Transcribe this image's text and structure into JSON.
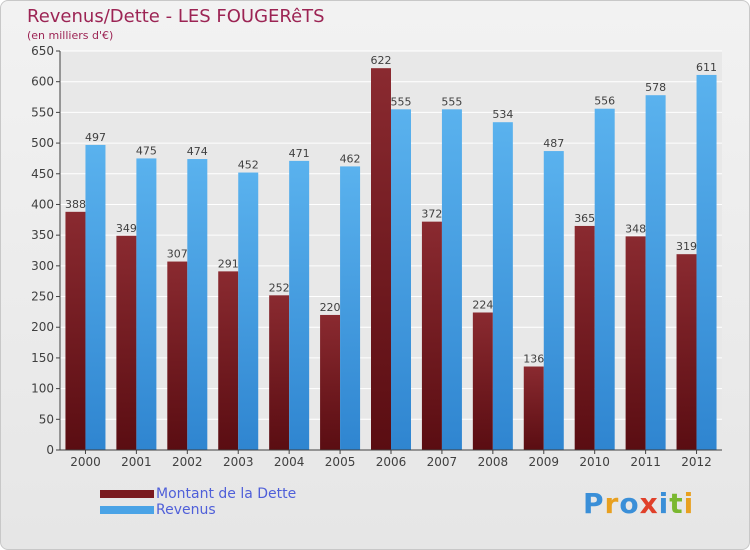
{
  "header": {
    "title": "Revenus/Dette - LES FOUGERêTS",
    "subtitle": "(en milliers d'€)"
  },
  "legend": {
    "debt_label": "Montant de la Dette",
    "revenue_label": "Revenus"
  },
  "logo": {
    "text": "Proxiti"
  },
  "colors": {
    "debt": "#7a1a1f",
    "revenue": "#4aa3e6",
    "label": "#404040",
    "grid": "#ffffff",
    "axis": "#404040"
  },
  "chart_data": {
    "type": "bar",
    "title": "Revenus/Dette - LES FOUGERêTS",
    "ylabel": "(en milliers d'€)",
    "xlabel": "",
    "categories": [
      "2000",
      "2001",
      "2002",
      "2003",
      "2004",
      "2005",
      "2006",
      "2007",
      "2008",
      "2009",
      "2010",
      "2011",
      "2012"
    ],
    "series": [
      {
        "name": "Montant de la Dette",
        "values": [
          388,
          349,
          307,
          291,
          252,
          220,
          622,
          372,
          224,
          136,
          365,
          348,
          319
        ]
      },
      {
        "name": "Revenus",
        "values": [
          497,
          475,
          474,
          452,
          471,
          462,
          555,
          555,
          534,
          487,
          556,
          578,
          611
        ]
      }
    ],
    "ylim": [
      0,
      650
    ],
    "yticks": [
      0,
      50,
      100,
      150,
      200,
      250,
      300,
      350,
      400,
      450,
      500,
      550,
      600,
      650
    ],
    "grid": true,
    "legend": "bottom-left"
  }
}
